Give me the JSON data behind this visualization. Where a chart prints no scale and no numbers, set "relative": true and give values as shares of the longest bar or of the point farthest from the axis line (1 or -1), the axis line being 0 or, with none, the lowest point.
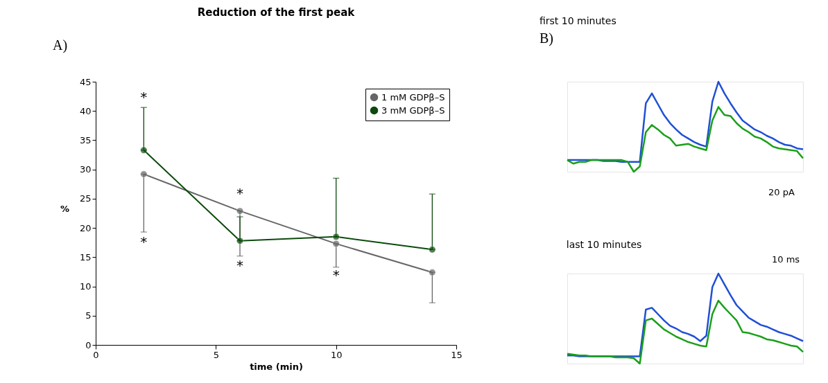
{
  "chart_data": [
    {
      "type": "line",
      "title": "Reduction of the first peak",
      "xlabel": "time (min)",
      "ylabel": "%",
      "x": [
        2,
        6,
        10,
        14
      ],
      "xlim": [
        0,
        15
      ],
      "xticks": [
        0,
        5,
        10,
        15
      ],
      "ylim": [
        0,
        45
      ],
      "yticks": [
        0,
        5,
        10,
        15,
        20,
        25,
        30,
        35,
        40,
        45
      ],
      "grid": false,
      "legend": "top right",
      "marker": "circle",
      "line_style": "solid",
      "series": [
        {
          "name": "1 mM GDPβ–S",
          "color": "#666666",
          "values": [
            29.2,
            22.9,
            17.3,
            12.4
          ],
          "errors": [
            [
              19.3,
              29.2
            ],
            [
              15.2,
              22.9
            ],
            [
              13.3,
              17.3
            ],
            [
              7.2,
              12.4
            ]
          ]
        },
        {
          "name": "3 mM GDPβ–S",
          "color": "#0b4a0b",
          "values": [
            33.3,
            17.8,
            18.5,
            16.3
          ],
          "errors": [
            [
              33.3,
              40.6
            ],
            [
              17.8,
              21.9
            ],
            [
              18.5,
              28.5
            ],
            [
              16.3,
              25.8
            ]
          ]
        }
      ],
      "annotations": [
        "A)",
        "*",
        "*",
        "*",
        "*",
        "*"
      ]
    },
    {
      "type": "line",
      "title": "first 10 minutes",
      "relative": true,
      "categories": [
        null,
        null,
        null,
        null,
        null,
        null,
        null,
        null,
        null,
        null,
        null,
        null,
        null,
        null,
        null,
        null,
        null,
        null,
        null,
        null,
        null,
        null,
        null,
        null,
        null,
        null,
        null,
        null,
        null,
        null,
        null,
        null,
        null,
        null,
        null,
        null,
        null,
        null,
        null,
        null
      ],
      "series": [
        {
          "color": "#1f4fd6",
          "values": [
            0.13,
            0.13,
            0.13,
            0.13,
            0.13,
            0.13,
            0.12,
            0.12,
            0.12,
            0.11,
            0.11,
            0.11,
            0.11,
            0.76,
            0.87,
            0.75,
            0.63,
            0.54,
            0.47,
            0.41,
            0.37,
            0.33,
            0.3,
            0.28,
            0.78,
            1,
            0.87,
            0.76,
            0.66,
            0.57,
            0.52,
            0.47,
            0.44,
            0.4,
            0.37,
            0.33,
            0.3,
            0.29,
            0.26,
            0.25
          ]
        },
        {
          "color": "#1aa01a",
          "values": [
            0.13,
            0.09,
            0.11,
            0.11,
            0.13,
            0.13,
            0.13,
            0.13,
            0.13,
            0.13,
            0.11,
            0,
            0.06,
            0.44,
            0.52,
            0.47,
            0.41,
            0.37,
            0.29,
            0.3,
            0.31,
            0.28,
            0.26,
            0.24,
            0.57,
            0.72,
            0.63,
            0.62,
            0.54,
            0.48,
            0.44,
            0.39,
            0.37,
            0.33,
            0.28,
            0.26,
            0.25,
            0.24,
            0.23,
            0.15
          ]
        }
      ],
      "annotations": [
        "B)",
        "20 pA"
      ]
    },
    {
      "type": "line",
      "title": "last 10 minutes",
      "relative": true,
      "categories": [
        null,
        null,
        null,
        null,
        null,
        null,
        null,
        null,
        null,
        null,
        null,
        null,
        null,
        null,
        null,
        null,
        null,
        null,
        null,
        null,
        null,
        null,
        null,
        null,
        null,
        null,
        null,
        null,
        null,
        null,
        null,
        null,
        null,
        null,
        null,
        null,
        null,
        null,
        null,
        null
      ],
      "series": [
        {
          "color": "#1f4fd6",
          "values": [
            0.09,
            0.09,
            0.08,
            0.08,
            0.08,
            0.08,
            0.08,
            0.08,
            0.08,
            0.08,
            0.08,
            0.08,
            0.08,
            0.6,
            0.62,
            0.55,
            0.48,
            0.42,
            0.39,
            0.35,
            0.33,
            0.3,
            0.25,
            0.31,
            0.85,
            1,
            0.88,
            0.76,
            0.65,
            0.58,
            0.51,
            0.47,
            0.43,
            0.41,
            0.38,
            0.35,
            0.33,
            0.31,
            0.28,
            0.25
          ]
        },
        {
          "color": "#1aa01a",
          "values": [
            0.11,
            0.1,
            0.09,
            0.09,
            0.08,
            0.08,
            0.08,
            0.08,
            0.07,
            0.07,
            0.07,
            0.06,
            0,
            0.48,
            0.5,
            0.44,
            0.38,
            0.34,
            0.3,
            0.27,
            0.24,
            0.22,
            0.2,
            0.19,
            0.55,
            0.7,
            0.62,
            0.55,
            0.48,
            0.35,
            0.34,
            0.32,
            0.3,
            0.27,
            0.26,
            0.24,
            0.22,
            0.2,
            0.19,
            0.13
          ]
        }
      ],
      "annotations": [
        "10 ms"
      ]
    }
  ]
}
